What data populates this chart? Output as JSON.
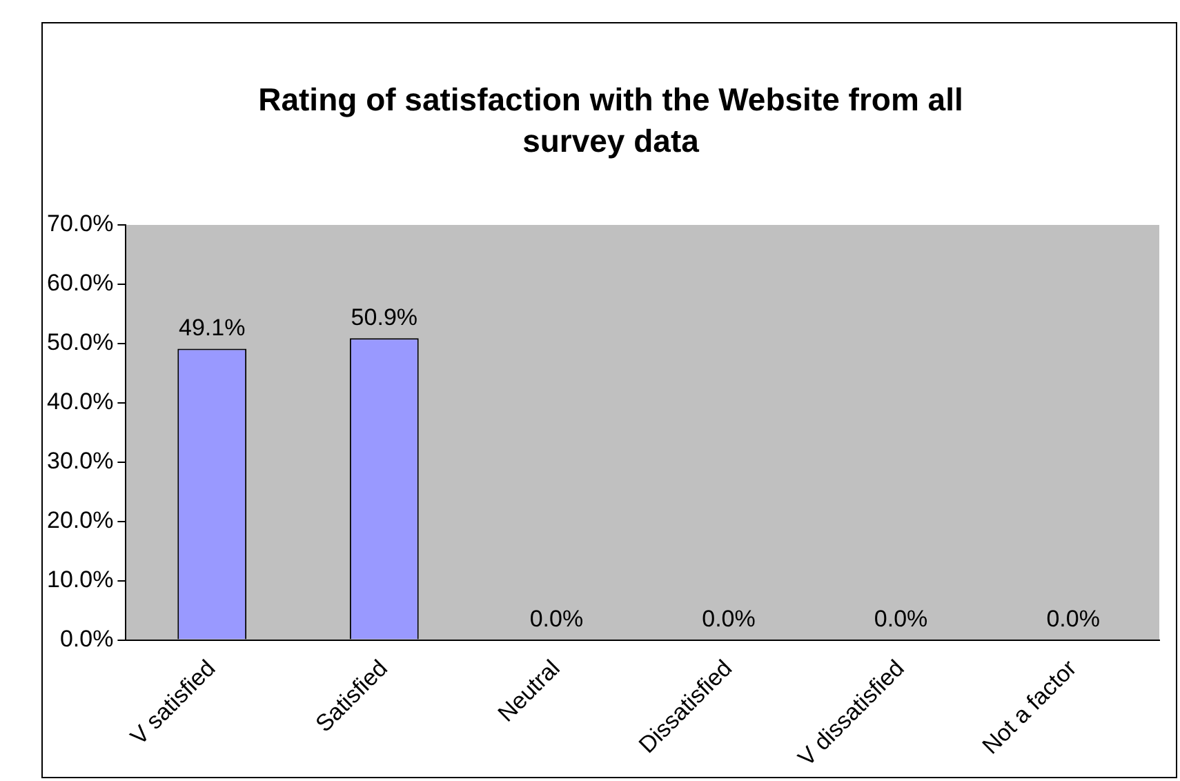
{
  "chart_data": {
    "type": "bar",
    "title": "Rating of satisfaction with the Website from all survey data",
    "categories": [
      "V satisfied",
      "Satisfied",
      "Neutral",
      "Dissatisfied",
      "V dissatisfied",
      "Not a factor"
    ],
    "values": [
      49.1,
      50.9,
      0,
      0,
      0,
      0
    ],
    "value_labels": [
      "49.1%",
      "50.9%",
      "0.0%",
      "0.0%",
      "0.0%",
      "0.0%"
    ],
    "color": "#9999ff",
    "ylim": [
      0,
      70
    ],
    "yticks": [
      {
        "value": 0,
        "label": "0.0%"
      },
      {
        "value": 10,
        "label": "10.0%"
      },
      {
        "value": 20,
        "label": "20.0%"
      },
      {
        "value": 30,
        "label": "30.0%"
      },
      {
        "value": 40,
        "label": "40.0%"
      },
      {
        "value": 50,
        "label": "50.0%"
      },
      {
        "value": 60,
        "label": "60.0%"
      },
      {
        "value": 70,
        "label": "70.0%"
      }
    ],
    "grid": false,
    "legend": false
  }
}
